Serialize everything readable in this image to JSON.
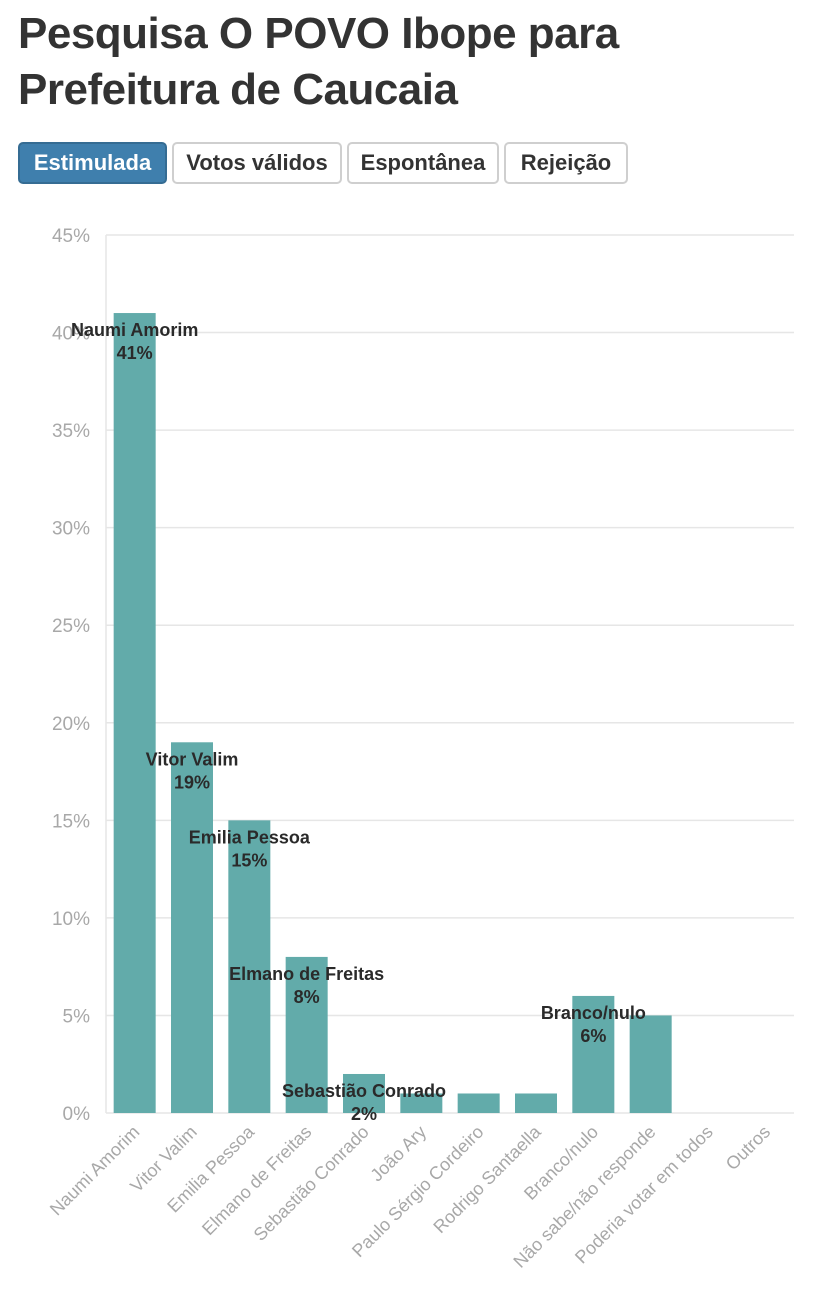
{
  "title": "Pesquisa O POVO Ibope para Prefeitura de Caucaia",
  "tabs": [
    {
      "label": "Estimulada",
      "active": true
    },
    {
      "label": "Votos válidos",
      "active": false
    },
    {
      "label": "Espontânea",
      "active": false
    },
    {
      "label": "Rejeição",
      "active": false
    }
  ],
  "colors": {
    "bar": "#62abaa",
    "active_tab": "#3f7fad",
    "grid": "#e6e6e6",
    "axis_text": "#a8a8a8",
    "label_text": "#2a2a2a"
  },
  "chart_data": {
    "type": "bar",
    "categories": [
      "Naumi Amorim",
      "Vitor Valim",
      "Emilia Pessoa",
      "Elmano de Freitas",
      "Sebastião Conrado",
      "João Ary",
      "Paulo Sérgio Cordeiro",
      "Rodrigo Santaella",
      "Branco/nulo",
      "Não sabe/não responde",
      "Poderia votar em todos",
      "Outros"
    ],
    "values": [
      41,
      19,
      15,
      8,
      2,
      1,
      1,
      1,
      6,
      5,
      0,
      0
    ],
    "data_labels": [
      {
        "name": "Naumi Amorim",
        "value": "41%"
      },
      {
        "name": "Vitor Valim",
        "value": "19%"
      },
      {
        "name": "Emilia Pessoa",
        "value": "15%"
      },
      {
        "name": "Elmano de Freitas",
        "value": "8%"
      },
      {
        "name": "Sebastião Conrado",
        "value": "2%"
      },
      null,
      null,
      null,
      {
        "name": "Branco/nulo",
        "value": "6%"
      },
      null,
      null,
      null
    ],
    "yticks": [
      "0%",
      "5%",
      "10%",
      "15%",
      "20%",
      "25%",
      "30%",
      "35%",
      "40%",
      "45%"
    ],
    "ylim": [
      0,
      45
    ],
    "grid": true
  }
}
